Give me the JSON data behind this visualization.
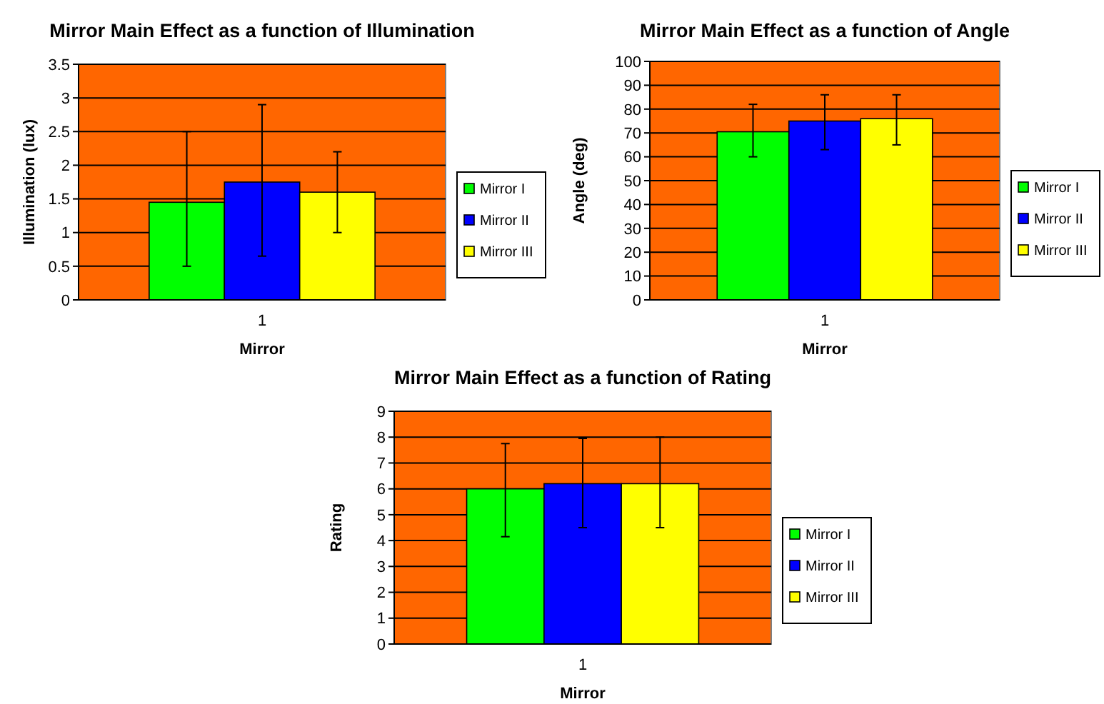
{
  "chart_data": [
    {
      "type": "bar",
      "title": "Mirror Main Effect as a function of Illumination",
      "xlabel": "Mirror",
      "ylabel": "Illumination (lux)",
      "categories": [
        "1"
      ],
      "ylim": [
        0,
        3.5
      ],
      "yticks": [
        0,
        0.5,
        1,
        1.5,
        2,
        2.5,
        3,
        3.5
      ],
      "grid": "y",
      "legend": "right",
      "series": [
        {
          "name": "Mirror I",
          "color": "#00ff00",
          "values": [
            1.45
          ],
          "errors": [
            [
              0.5,
              2.5
            ]
          ]
        },
        {
          "name": "Mirror II",
          "color": "#0000ff",
          "values": [
            1.75
          ],
          "errors": [
            [
              0.65,
              2.9
            ]
          ]
        },
        {
          "name": "Mirror  III",
          "color": "#ffff00",
          "values": [
            1.6
          ],
          "errors": [
            [
              1.0,
              2.2
            ]
          ]
        }
      ]
    },
    {
      "type": "bar",
      "title": "Mirror Main Effect as a function of Angle",
      "xlabel": "Mirror",
      "ylabel": "Angle (deg)",
      "categories": [
        "1"
      ],
      "ylim": [
        0,
        100
      ],
      "yticks": [
        0,
        10,
        20,
        30,
        40,
        50,
        60,
        70,
        80,
        90,
        100
      ],
      "grid": "y",
      "legend": "right",
      "series": [
        {
          "name": "Mirror I",
          "color": "#00ff00",
          "values": [
            70.5
          ],
          "errors": [
            [
              60,
              82
            ]
          ]
        },
        {
          "name": "Mirror II",
          "color": "#0000ff",
          "values": [
            75
          ],
          "errors": [
            [
              63,
              86
            ]
          ]
        },
        {
          "name": "Mirror  III",
          "color": "#ffff00",
          "values": [
            76
          ],
          "errors": [
            [
              65,
              86
            ]
          ]
        }
      ]
    },
    {
      "type": "bar",
      "title": "Mirror Main Effect as a function of Rating",
      "xlabel": "Mirror",
      "ylabel": "Rating",
      "categories": [
        "1"
      ],
      "ylim": [
        0,
        9
      ],
      "yticks": [
        0,
        1,
        2,
        3,
        4,
        5,
        6,
        7,
        8,
        9
      ],
      "grid": "y",
      "legend": "right",
      "series": [
        {
          "name": "Mirror I",
          "color": "#00ff00",
          "values": [
            6
          ],
          "errors": [
            [
              4.15,
              7.75
            ]
          ]
        },
        {
          "name": "Mirror II",
          "color": "#0000ff",
          "values": [
            6.2
          ],
          "errors": [
            [
              4.5,
              7.95
            ]
          ]
        },
        {
          "name": "Mirror  III",
          "color": "#ffff00",
          "values": [
            6.2
          ],
          "errors": [
            [
              4.5,
              8
            ]
          ]
        }
      ]
    }
  ]
}
